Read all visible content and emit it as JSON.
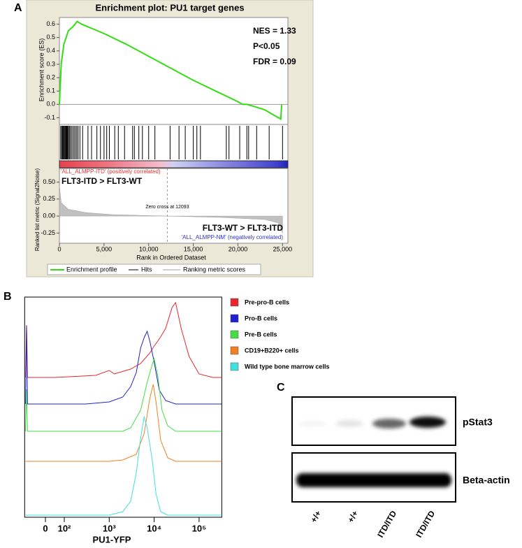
{
  "labels": {
    "panel_a": "A",
    "panel_b": "B",
    "panel_c": "C"
  },
  "chart_data": [
    {
      "type": "line",
      "title": "Enrichment plot: PU1 target genes",
      "y_label": "Enrichment score (ES)",
      "annotations": [
        "NES = 1.33",
        "P<0.05",
        "FDR = 0.09"
      ],
      "xlim": [
        0,
        25600
      ],
      "ylim": [
        -0.15,
        0.65
      ],
      "yticks": [
        0.6,
        0.5,
        0.4,
        0.3,
        0.2,
        0.1,
        {
          "value": 0,
          "label": "0.0"
        },
        -0.1
      ],
      "series": [
        {
          "name": "Enrichment profile",
          "color": "#33dd11",
          "x": [
            0,
            200,
            500,
            1000,
            1500,
            2000,
            2500,
            5000,
            7500,
            10000,
            12500,
            15000,
            17500,
            20000,
            20500,
            21000,
            22000,
            23000,
            24000,
            24800,
            24900
          ],
          "values": [
            0,
            0.3,
            0.45,
            0.55,
            0.58,
            0.62,
            0.6,
            0.53,
            0.45,
            0.36,
            0.27,
            0.18,
            0.1,
            0.02,
            0,
            0,
            -0.02,
            -0.04,
            -0.08,
            -0.11,
            0
          ]
        }
      ],
      "hits": {
        "name": "Hits",
        "color": "#000000",
        "x": [
          150,
          250,
          350,
          420,
          500,
          600,
          680,
          750,
          820,
          900,
          1000,
          1100,
          1200,
          1350,
          1500,
          1650,
          1800,
          1950,
          2100,
          2300,
          2600,
          3200,
          3600,
          4200,
          4600,
          5000,
          5300,
          5600,
          6200,
          6600,
          7300,
          8200,
          8400,
          8900,
          9300,
          10000,
          10700,
          12400,
          13400,
          14100,
          15000,
          15400,
          15800,
          18700,
          19000,
          20200,
          21000,
          21200,
          22100,
          23500,
          25000
        ]
      }
    },
    {
      "type": "area",
      "y_label": "Ranked list metric (Signal2Noise)",
      "x_label": "Rank in Ordered Dataset",
      "annotations": [
        "'ALL_ALMPP-ITD' (positively correlated)",
        "FLT3-ITD > FLT3-WT",
        "FLT3-WT > FLT3-ITD",
        "'ALL_ALMPP-NM' (negatively correlated)"
      ],
      "zero_cross": 12093,
      "zero_cross_label": "Zero cross at 12093",
      "xlim": [
        0,
        25600
      ],
      "ylim": [
        -0.4,
        0.7
      ],
      "yticks": [
        {
          "value": 0.5,
          "label": "0.50"
        },
        {
          "value": 0.25,
          "label": "0.25"
        },
        {
          "value": 0,
          "label": "0.00"
        },
        {
          "value": -0.25,
          "label": "-0.25"
        }
      ],
      "xticks": [
        0,
        {
          "value": 5000,
          "label": "5,000"
        },
        {
          "value": 10000,
          "label": "10,000"
        },
        {
          "value": 15000,
          "label": "15,000"
        },
        {
          "value": 20000,
          "label": "20,000"
        },
        {
          "value": 25000,
          "label": "25,000"
        }
      ],
      "series": [
        {
          "name": "Ranking metric scores",
          "color": "#c0c0c0",
          "x": [
            0,
            200,
            1000,
            3000,
            6000,
            12093,
            18000,
            23000,
            24500,
            25000
          ],
          "values": [
            0.45,
            0.2,
            0.1,
            0.05,
            0.02,
            0,
            -0.02,
            -0.05,
            -0.1,
            -0.25
          ]
        }
      ]
    },
    {
      "type": "ridgeline",
      "x_label": "PU1-YFP",
      "x_scale": "biexponential",
      "xlim": [
        -110,
        320000
      ],
      "xticks": [
        0,
        {
          "value": 100,
          "label": "10²"
        },
        {
          "value": 1000,
          "label": "10³"
        },
        {
          "value": 10000,
          "label": "10⁴"
        },
        {
          "value": 100000,
          "label": "10⁵"
        }
      ],
      "series": [
        {
          "name": "Pre-pro-B cells",
          "color": "#e8262c",
          "x": [
            -105,
            -100,
            -95,
            50,
            500,
            1000,
            1300,
            3000,
            5000,
            8000,
            10000,
            13000,
            18000,
            25000,
            30000,
            40000,
            60000,
            100000,
            200000,
            320000
          ],
          "values": [
            0,
            75,
            0,
            0,
            3,
            10,
            5,
            12,
            20,
            35,
            45,
            55,
            70,
            100,
            107,
            70,
            30,
            5,
            0,
            0
          ]
        },
        {
          "name": "Pro-B cells",
          "color": "#2020d0",
          "x": [
            -105,
            -100,
            -95,
            300,
            1000,
            2000,
            3000,
            4000,
            5000,
            6000,
            7000,
            8000,
            10000,
            13000,
            18000,
            30000,
            320000
          ],
          "values": [
            0,
            112,
            0,
            0,
            3,
            10,
            25,
            45,
            80,
            95,
            104,
            90,
            60,
            20,
            5,
            0,
            0
          ]
        },
        {
          "name": "Pre-B cells",
          "color": "#44dd44",
          "x": [
            -105,
            -100,
            -95,
            2000,
            3000,
            5000,
            7000,
            9000,
            10000,
            12000,
            15000,
            20000,
            30000,
            320000
          ],
          "values": [
            0,
            60,
            0,
            0,
            5,
            30,
            70,
            95,
            104,
            80,
            30,
            8,
            0,
            0
          ]
        },
        {
          "name": "CD19+B220+ cells",
          "color": "#f08020",
          "x": [
            -105,
            1000,
            2000,
            4000,
            6000,
            8000,
            9500,
            11000,
            14000,
            20000,
            30000,
            320000
          ],
          "values": [
            0,
            0,
            2,
            10,
            40,
            90,
            110,
            85,
            30,
            5,
            0,
            0
          ]
        },
        {
          "name": "Wild type bone marrow cells",
          "color": "#40e0e0",
          "x": [
            -105,
            1000,
            2000,
            3000,
            4000,
            5000,
            6000,
            7000,
            9000,
            11000,
            14000,
            20000,
            320000
          ],
          "values": [
            0,
            0,
            5,
            20,
            60,
            110,
            141,
            125,
            80,
            30,
            5,
            0,
            0
          ]
        }
      ]
    }
  ],
  "blot": {
    "rows": [
      "pStat3",
      "Beta-actin"
    ],
    "lanes": [
      "+/+",
      "+/+",
      "ITD/ITD",
      "ITD/ITD"
    ]
  }
}
